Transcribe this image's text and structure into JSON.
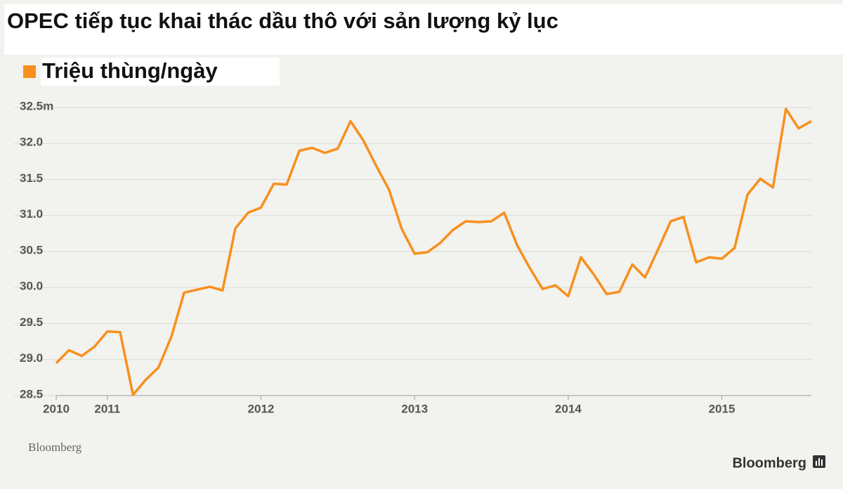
{
  "chart_data": {
    "type": "line",
    "title": "OPEC tiếp tục khai thác dầu thô với sản lượng kỷ lục",
    "source": "Bloomberg",
    "brand": "Bloomberg",
    "x": [
      2010.667,
      2010.75,
      2010.833,
      2010.917,
      2011,
      2011.083,
      2011.167,
      2011.25,
      2011.333,
      2011.417,
      2011.5,
      2011.583,
      2011.667,
      2011.75,
      2011.833,
      2011.917,
      2012,
      2012.083,
      2012.167,
      2012.25,
      2012.333,
      2012.417,
      2012.5,
      2012.583,
      2012.667,
      2012.75,
      2012.833,
      2012.917,
      2013,
      2013.083,
      2013.167,
      2013.25,
      2013.333,
      2013.417,
      2013.5,
      2013.583,
      2013.667,
      2013.75,
      2013.833,
      2013.917,
      2014,
      2014.083,
      2014.167,
      2014.25,
      2014.333,
      2014.417,
      2014.5,
      2014.583,
      2014.667,
      2014.75,
      2014.833,
      2014.917,
      2015,
      2015.083,
      2015.167,
      2015.25,
      2015.333,
      2015.417,
      2015.5,
      2015.583
    ],
    "series": [
      {
        "name": "Triệu thùng/ngày",
        "color": "#f7901e",
        "values": [
          28.95,
          29.13,
          29.05,
          29.18,
          29.39,
          29.38,
          28.51,
          28.72,
          28.89,
          29.32,
          29.93,
          29.97,
          30.01,
          29.96,
          30.82,
          31.04,
          31.11,
          31.44,
          31.43,
          31.9,
          31.94,
          31.87,
          31.93,
          32.31,
          32.04,
          31.69,
          31.36,
          30.81,
          30.47,
          30.49,
          30.62,
          30.8,
          30.92,
          30.91,
          30.92,
          31.04,
          30.59,
          30.27,
          29.98,
          30.03,
          29.88,
          30.42,
          30.18,
          29.91,
          29.94,
          30.32,
          30.14,
          30.52,
          30.92,
          30.98,
          30.35,
          30.42,
          30.4,
          30.55,
          31.29,
          31.51,
          31.39,
          32.48,
          32.21,
          32.31
        ]
      }
    ],
    "xlim": [
      2010.667,
      2015.583
    ],
    "xticks": [
      {
        "value": 2010.667,
        "label": "2010"
      },
      2011,
      2012,
      2013,
      2014,
      2015
    ],
    "ylim": [
      28.5,
      32.5
    ],
    "yticks": [
      28.5,
      {
        "value": 29,
        "label": "29.0"
      },
      29.5,
      {
        "value": 30,
        "label": "30.0"
      },
      30.5,
      {
        "value": 31,
        "label": "31.0"
      },
      31.5,
      {
        "value": 32,
        "label": "32.0"
      },
      {
        "value": 32.5,
        "label": "32.5m"
      }
    ],
    "grid": true
  }
}
